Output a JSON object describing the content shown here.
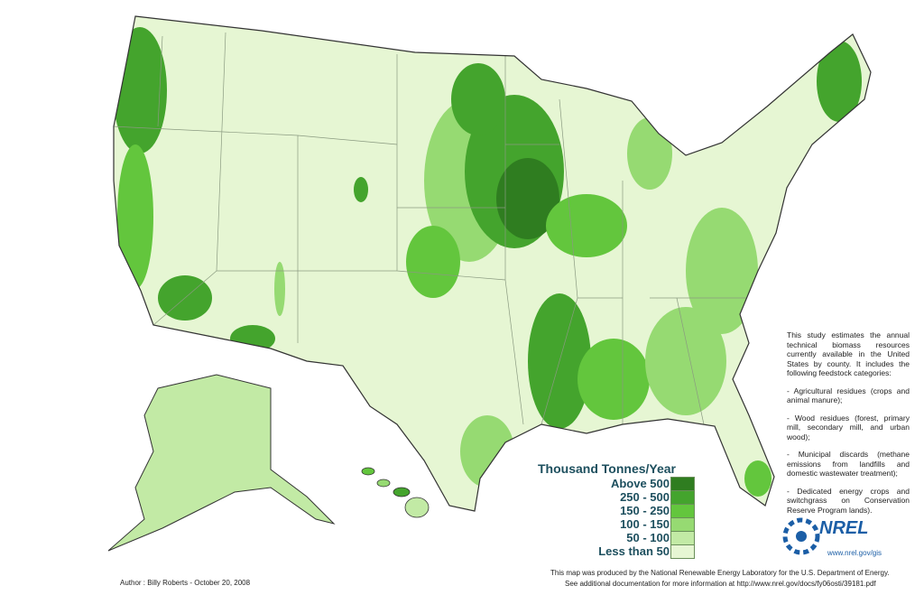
{
  "legend": {
    "title": "Thousand Tonnes/Year",
    "items": [
      {
        "label": "Above 500",
        "color": "#2f7d20"
      },
      {
        "label": "250 - 500",
        "color": "#44a42d"
      },
      {
        "label": "150 - 250",
        "color": "#63c63d"
      },
      {
        "label": "100 - 150",
        "color": "#96da72"
      },
      {
        "label": "50 - 100",
        "color": "#c2eaa5"
      },
      {
        "label": "Less than 50",
        "color": "#e6f6d3"
      }
    ]
  },
  "description": {
    "intro": "This study estimates the annual technical biomass resources currently available in the United States by county. It includes the following feedstock categories:",
    "items": [
      "- Agricultural residues (crops and animal manure);",
      "- Wood residues (forest, primary mill, secondary mill, and urban wood);",
      "- Municipal discards (methane emissions from landfills and domestic wastewater treatment);",
      "- Dedicated energy crops and switchgrass on Conservation Reserve Program lands)."
    ]
  },
  "logo": {
    "name": "NREL",
    "url": "www.nrel.gov/gis"
  },
  "footer": {
    "author": "Author : Billy Roberts - October 20, 2008",
    "credit": "This map was produced by the National Renewable Energy Laboratory for the U.S. Department of Energy.",
    "documentation": "See additional documentation for more information at http://www.nrel.gov/docs/fy06osti/39181.pdf"
  }
}
